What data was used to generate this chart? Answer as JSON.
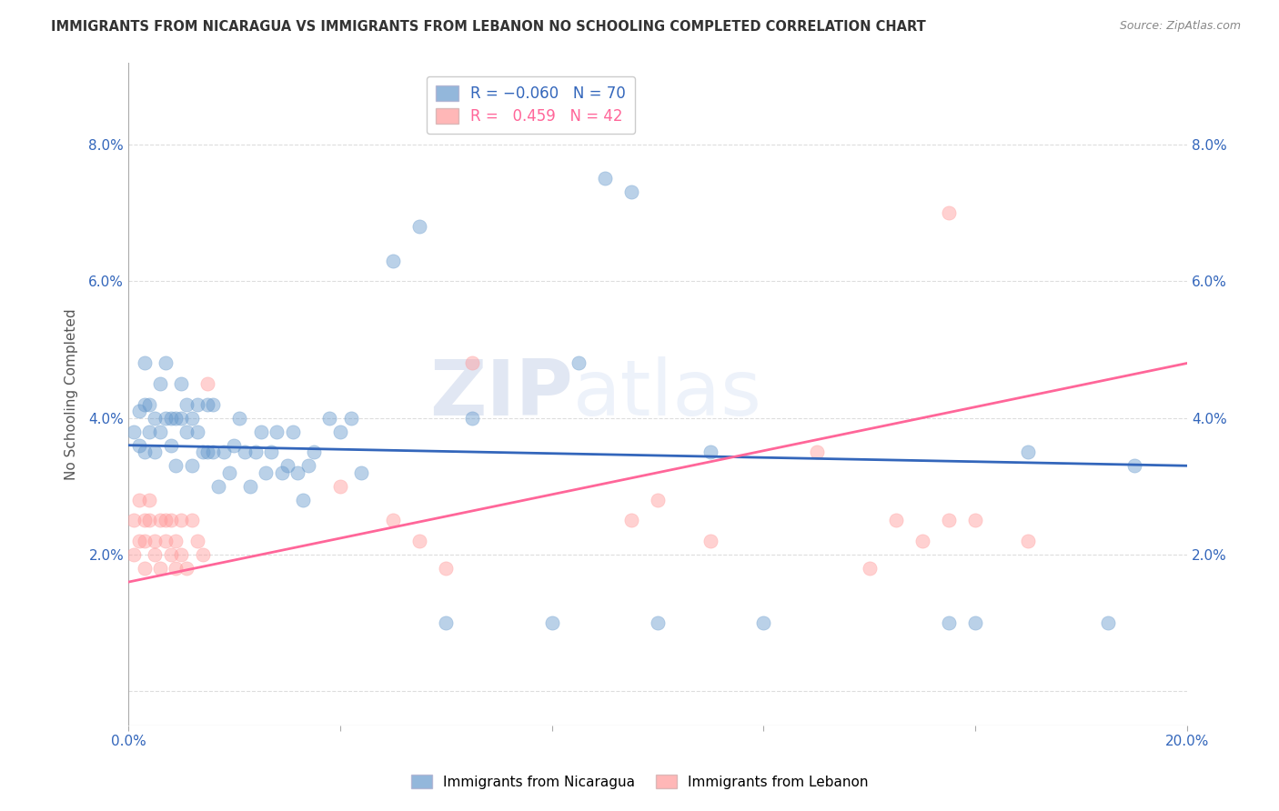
{
  "title": "IMMIGRANTS FROM NICARAGUA VS IMMIGRANTS FROM LEBANON NO SCHOOLING COMPLETED CORRELATION CHART",
  "source": "Source: ZipAtlas.com",
  "ylabel": "No Schooling Completed",
  "xlim": [
    0.0,
    0.2
  ],
  "ylim": [
    -0.005,
    0.092
  ],
  "yticks": [
    0.0,
    0.02,
    0.04,
    0.06,
    0.08
  ],
  "xticks": [
    0.0,
    0.04,
    0.08,
    0.12,
    0.16,
    0.2
  ],
  "xtick_labels_show": [
    "0.0%",
    "",
    "",
    "",
    "",
    "20.0%"
  ],
  "ytick_labels_left": [
    "",
    "2.0%",
    "4.0%",
    "6.0%",
    "8.0%"
  ],
  "ytick_labels_right": [
    "",
    "2.0%",
    "4.0%",
    "6.0%",
    "8.0%"
  ],
  "blue_color": "#6699CC",
  "pink_color": "#FF9999",
  "blue_line_color": "#3366BB",
  "pink_line_color": "#FF6699",
  "blue_line_y_start": 0.036,
  "blue_line_y_end": 0.033,
  "pink_line_y_start": 0.016,
  "pink_line_y_end": 0.048,
  "watermark_zip": "ZIP",
  "watermark_atlas": "atlas",
  "background_color": "#ffffff",
  "grid_color": "#dddddd",
  "scatter_size": 120,
  "scatter_alpha": 0.45,
  "blue_scatter_x": [
    0.001,
    0.002,
    0.002,
    0.003,
    0.003,
    0.003,
    0.004,
    0.004,
    0.005,
    0.005,
    0.006,
    0.006,
    0.007,
    0.007,
    0.008,
    0.008,
    0.009,
    0.009,
    0.01,
    0.01,
    0.011,
    0.011,
    0.012,
    0.012,
    0.013,
    0.013,
    0.014,
    0.015,
    0.015,
    0.016,
    0.016,
    0.017,
    0.018,
    0.019,
    0.02,
    0.021,
    0.022,
    0.023,
    0.024,
    0.025,
    0.026,
    0.027,
    0.028,
    0.029,
    0.03,
    0.031,
    0.032,
    0.033,
    0.034,
    0.035,
    0.038,
    0.04,
    0.042,
    0.044,
    0.05,
    0.055,
    0.06,
    0.065,
    0.08,
    0.085,
    0.09,
    0.095,
    0.1,
    0.11,
    0.12,
    0.155,
    0.16,
    0.17,
    0.185,
    0.19
  ],
  "blue_scatter_y": [
    0.038,
    0.041,
    0.036,
    0.042,
    0.035,
    0.048,
    0.038,
    0.042,
    0.035,
    0.04,
    0.045,
    0.038,
    0.048,
    0.04,
    0.036,
    0.04,
    0.04,
    0.033,
    0.04,
    0.045,
    0.038,
    0.042,
    0.04,
    0.033,
    0.038,
    0.042,
    0.035,
    0.042,
    0.035,
    0.042,
    0.035,
    0.03,
    0.035,
    0.032,
    0.036,
    0.04,
    0.035,
    0.03,
    0.035,
    0.038,
    0.032,
    0.035,
    0.038,
    0.032,
    0.033,
    0.038,
    0.032,
    0.028,
    0.033,
    0.035,
    0.04,
    0.038,
    0.04,
    0.032,
    0.063,
    0.068,
    0.01,
    0.04,
    0.01,
    0.048,
    0.075,
    0.073,
    0.01,
    0.035,
    0.01,
    0.01,
    0.01,
    0.035,
    0.01,
    0.033
  ],
  "pink_scatter_x": [
    0.001,
    0.001,
    0.002,
    0.002,
    0.003,
    0.003,
    0.003,
    0.004,
    0.004,
    0.005,
    0.005,
    0.006,
    0.006,
    0.007,
    0.007,
    0.008,
    0.008,
    0.009,
    0.009,
    0.01,
    0.01,
    0.011,
    0.012,
    0.013,
    0.014,
    0.015,
    0.04,
    0.05,
    0.055,
    0.06,
    0.065,
    0.095,
    0.1,
    0.11,
    0.13,
    0.145,
    0.15,
    0.155,
    0.16,
    0.17,
    0.14,
    0.155
  ],
  "pink_scatter_y": [
    0.02,
    0.025,
    0.022,
    0.028,
    0.018,
    0.022,
    0.025,
    0.025,
    0.028,
    0.022,
    0.02,
    0.025,
    0.018,
    0.022,
    0.025,
    0.025,
    0.02,
    0.018,
    0.022,
    0.02,
    0.025,
    0.018,
    0.025,
    0.022,
    0.02,
    0.045,
    0.03,
    0.025,
    0.022,
    0.018,
    0.048,
    0.025,
    0.028,
    0.022,
    0.035,
    0.025,
    0.022,
    0.07,
    0.025,
    0.022,
    0.018,
    0.025
  ]
}
